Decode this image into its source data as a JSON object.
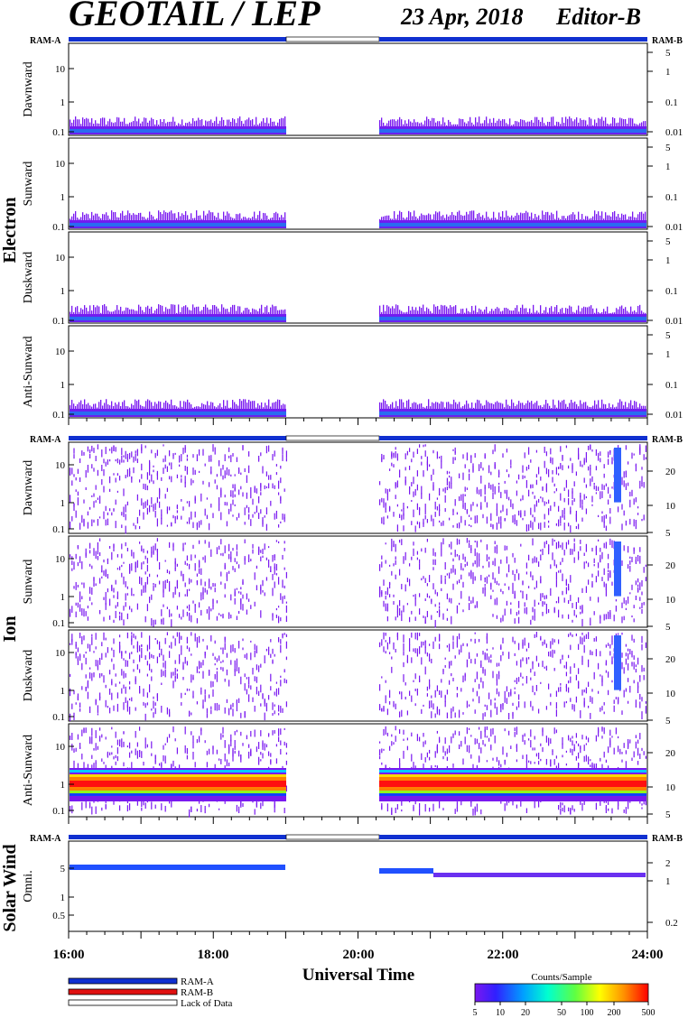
{
  "header": {
    "title": "GEOTAIL / LEP",
    "date": "23 Apr, 2018",
    "editor": "Editor-B"
  },
  "colors": {
    "ram_a": "#1030d0",
    "ram_b": "#e01010",
    "lack_of_data": "#ffffff",
    "spectrum_low": "#7a18f0"
  },
  "groups": {
    "electron": "Electron",
    "ion": "Ion",
    "solar_wind": "Solar Wind"
  },
  "ram_labels": {
    "left": "RAM-A",
    "right": "RAM-B"
  },
  "chart_data": [
    {
      "type": "heatmap",
      "group": "Electron",
      "panels": [
        {
          "name": "Dawnward",
          "left_ticks": [
            "10",
            "1",
            "0.1"
          ],
          "right_ticks": [
            "5",
            "1",
            "0.1",
            "0.01"
          ]
        },
        {
          "name": "Sunward",
          "left_ticks": [
            "10",
            "1",
            "0.1"
          ],
          "right_ticks": [
            "5",
            "1",
            "0.1",
            "0.01"
          ]
        },
        {
          "name": "Duskward",
          "left_ticks": [
            "10",
            "1",
            "0.1"
          ],
          "right_ticks": [
            "5",
            "1",
            "0.1",
            "0.01"
          ]
        },
        {
          "name": "Anti-Sunward",
          "left_ticks": [
            "10",
            "1",
            "0.1"
          ],
          "right_ticks": [
            "5",
            "1",
            "0.1",
            "0.01"
          ]
        }
      ]
    },
    {
      "type": "heatmap",
      "group": "Ion",
      "panels": [
        {
          "name": "Dawnward",
          "left_ticks": [
            "10",
            "1",
            "0.1"
          ],
          "right_ticks": [
            "20",
            "10",
            "5"
          ]
        },
        {
          "name": "Sunward",
          "left_ticks": [
            "10",
            "1",
            "0.1"
          ],
          "right_ticks": [
            "20",
            "10",
            "5"
          ]
        },
        {
          "name": "Duskward",
          "left_ticks": [
            "10",
            "1",
            "0.1"
          ],
          "right_ticks": [
            "20",
            "10",
            "5"
          ]
        },
        {
          "name": "Anti-Sunward",
          "left_ticks": [
            "10",
            "1",
            "0.1"
          ],
          "right_ticks": [
            "20",
            "10",
            "5"
          ]
        }
      ]
    },
    {
      "type": "heatmap",
      "group": "Solar Wind",
      "panels": [
        {
          "name": "Omni.",
          "left_ticks": [
            "5",
            "1",
            "0.5"
          ],
          "right_ticks": [
            "2",
            "1",
            "0.2"
          ]
        }
      ]
    }
  ],
  "time_axis": {
    "xlabel": "Universal Time",
    "tick_labels": [
      "16:00",
      "18:00",
      "20:00",
      "22:00",
      "24:00"
    ],
    "xlim_hours": [
      16,
      24
    ],
    "data_gap_hours": [
      19.0,
      20.3
    ]
  },
  "legend": {
    "ram_a": "RAM-A",
    "ram_b": "RAM-B",
    "lack_of_data": "Lack of Data"
  },
  "colorbar": {
    "title": "Counts/Sample",
    "tick_labels": [
      "5",
      "10",
      "20",
      "50",
      "100",
      "200",
      "500"
    ]
  }
}
